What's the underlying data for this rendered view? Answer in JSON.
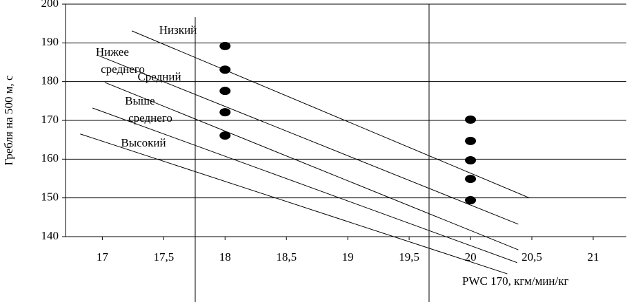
{
  "chart_data": {
    "type": "scatter",
    "y_label": "Гребля на 500 м, с",
    "x_label": "PWC 170, кгм/мин/кг",
    "xlim": [
      16.7,
      21.27
    ],
    "ylim": [
      140,
      200
    ],
    "xticks": [
      17,
      {
        "value": 17.5,
        "label": "17,5"
      },
      18,
      {
        "value": 18.5,
        "label": "18,5"
      },
      19,
      {
        "value": 19.5,
        "label": "19,5"
      },
      20,
      {
        "value": 20.5,
        "label": "20,5"
      },
      21
    ],
    "yticks": [
      140,
      150,
      160,
      170,
      180,
      190,
      200
    ],
    "grid": true,
    "color": "#000000",
    "series": [
      {
        "name": "Низкий",
        "type": "line",
        "x": [
          17.24,
          20.48
        ],
        "values": [
          193.1,
          150.0
        ]
      },
      {
        "name": "Нижее среднего",
        "type": "line",
        "x": [
          16.97,
          20.39
        ],
        "values": [
          186.7,
          143.2
        ]
      },
      {
        "name": "Средний",
        "type": "line",
        "x": [
          17.02,
          20.39
        ],
        "values": [
          179.8,
          136.6
        ]
      },
      {
        "name": "Выше среднего",
        "type": "line",
        "x": [
          16.92,
          20.38
        ],
        "values": [
          173.2,
          133.3
        ]
      },
      {
        "name": "Высокий",
        "type": "line",
        "x": [
          16.82,
          20.3
        ],
        "values": [
          166.5,
          130.4
        ]
      }
    ],
    "points": {
      "x": [
        18,
        18,
        18,
        18,
        18,
        20,
        20,
        20,
        20,
        20
      ],
      "values": [
        189.2,
        183.1,
        177.6,
        172.1,
        166.1,
        170.2,
        164.7,
        159.7,
        154.9,
        149.4
      ]
    }
  }
}
